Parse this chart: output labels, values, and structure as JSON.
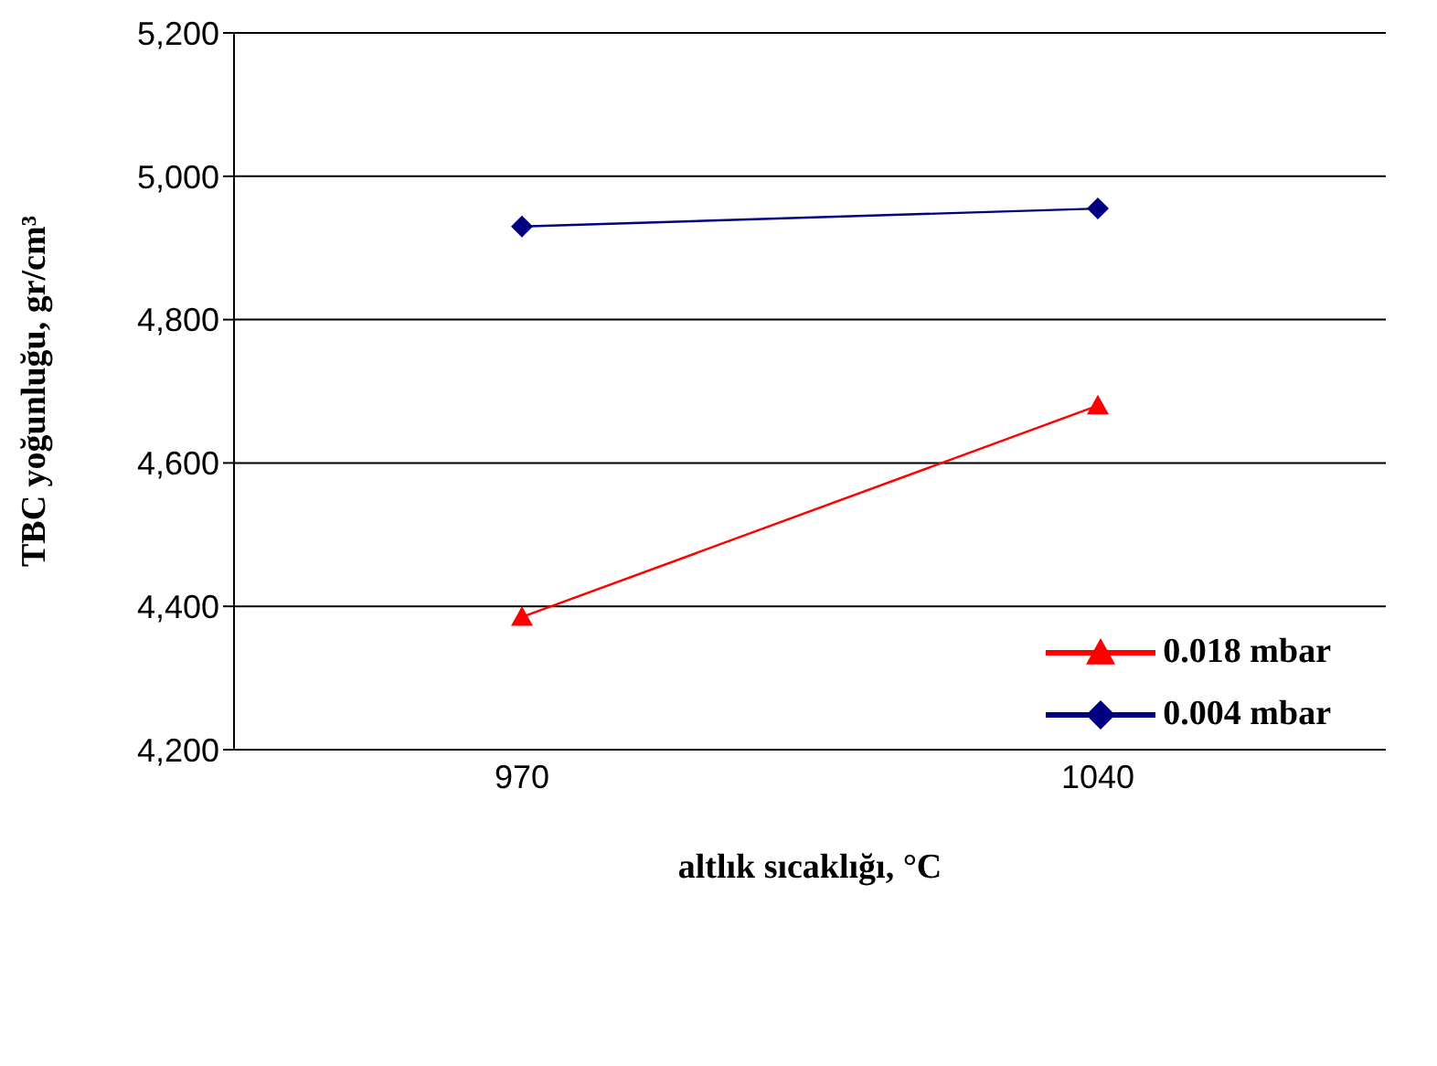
{
  "chart_data": {
    "type": "line",
    "xlabel": "altlık sıcaklığı, °C",
    "ylabel": "TBC yoğunluğu, gr/cm³",
    "categories": [
      "970",
      "1040"
    ],
    "series": [
      {
        "name": "0.018 mbar",
        "color": "#ff0000",
        "marker": "triangle",
        "values": [
          4385,
          4680
        ]
      },
      {
        "name": "0.004 mbar",
        "color": "#000080",
        "marker": "diamond",
        "values": [
          4930,
          4955
        ]
      }
    ],
    "ylim": [
      4200,
      5200
    ],
    "yticks": [
      {
        "value": 4200,
        "label": "4,200"
      },
      {
        "value": 4400,
        "label": "4,400"
      },
      {
        "value": 4600,
        "label": "4,600"
      },
      {
        "value": 4800,
        "label": "4,800"
      },
      {
        "value": 5000,
        "label": "5,000"
      },
      {
        "value": 5200,
        "label": "5,200"
      }
    ],
    "grid": "y",
    "legend": "bottom right",
    "line_style": "solid"
  }
}
